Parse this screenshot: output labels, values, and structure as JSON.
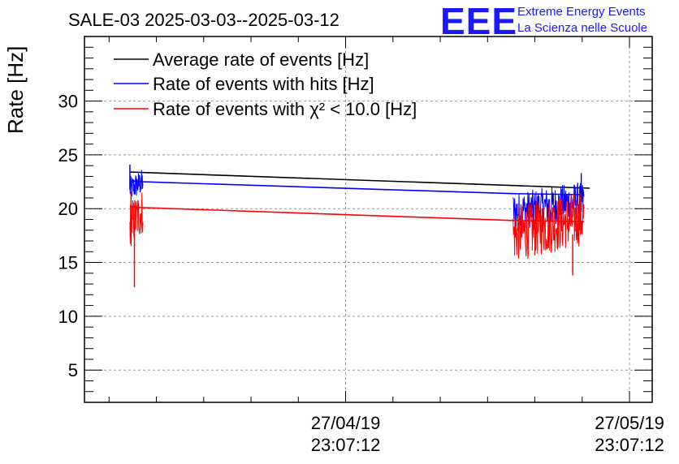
{
  "title": "SALE-03 2025-03-03--2025-03-12",
  "logo": {
    "mark": "EEE",
    "line1": "Extreme Energy Events",
    "line2": "La Scienza nelle Scuole",
    "color": "#1a1aff"
  },
  "chart_data": {
    "type": "line",
    "title": "SALE-03 2025-03-03--2025-03-12",
    "ylabel": "Rate [Hz]",
    "xlabel": "",
    "ylim": [
      2,
      36
    ],
    "yticks": [
      5,
      10,
      15,
      20,
      25,
      30
    ],
    "xticks": [
      {
        "t": 0.46,
        "line1": "27/04/19",
        "line2": "23:07:12"
      },
      {
        "t": 0.96,
        "line1": "27/05/19",
        "line2": "23:07:12"
      }
    ],
    "grid": true,
    "legend_position": "top-left",
    "series": [
      {
        "name": "Average rate of events [Hz]",
        "color": "#000000",
        "style": "line",
        "x": [
          0.08,
          0.89
        ],
        "y": [
          23.4,
          21.9
        ]
      },
      {
        "name": "Rate of events with hits [Hz]",
        "color": "#0000ff",
        "style": "noisy",
        "segments": [
          {
            "x0": 0.08,
            "x1": 0.103,
            "base": 21.8,
            "amp": 1.2,
            "spikes": [
              [
                0.08,
                24.1
              ],
              [
                0.1,
                22.9
              ]
            ]
          },
          {
            "x0": 0.755,
            "x1": 0.88,
            "base": 19.7,
            "amp": 1.8,
            "spikes": [
              [
                0.875,
                23.3
              ]
            ]
          }
        ],
        "x": [
          0.08,
          0.103,
          0.755,
          0.88
        ],
        "y": [
          22.6,
          22.5,
          21.4,
          21.3
        ]
      },
      {
        "name": "Rate of events with χ² < 10.0 [Hz]",
        "color": "#ff0000",
        "style": "noisy",
        "segments": [
          {
            "x0": 0.08,
            "x1": 0.103,
            "base": 18.5,
            "amp": 2.2,
            "spikes": [
              [
                0.088,
                12.7
              ],
              [
                0.082,
                21.6
              ]
            ]
          },
          {
            "x0": 0.755,
            "x1": 0.88,
            "base": 17.6,
            "amp": 2.6,
            "spikes": [
              [
                0.86,
                13.8
              ]
            ]
          }
        ],
        "x": [
          0.08,
          0.103,
          0.755,
          0.88
        ],
        "y": [
          20.2,
          20.1,
          18.9,
          18.8
        ]
      }
    ]
  }
}
